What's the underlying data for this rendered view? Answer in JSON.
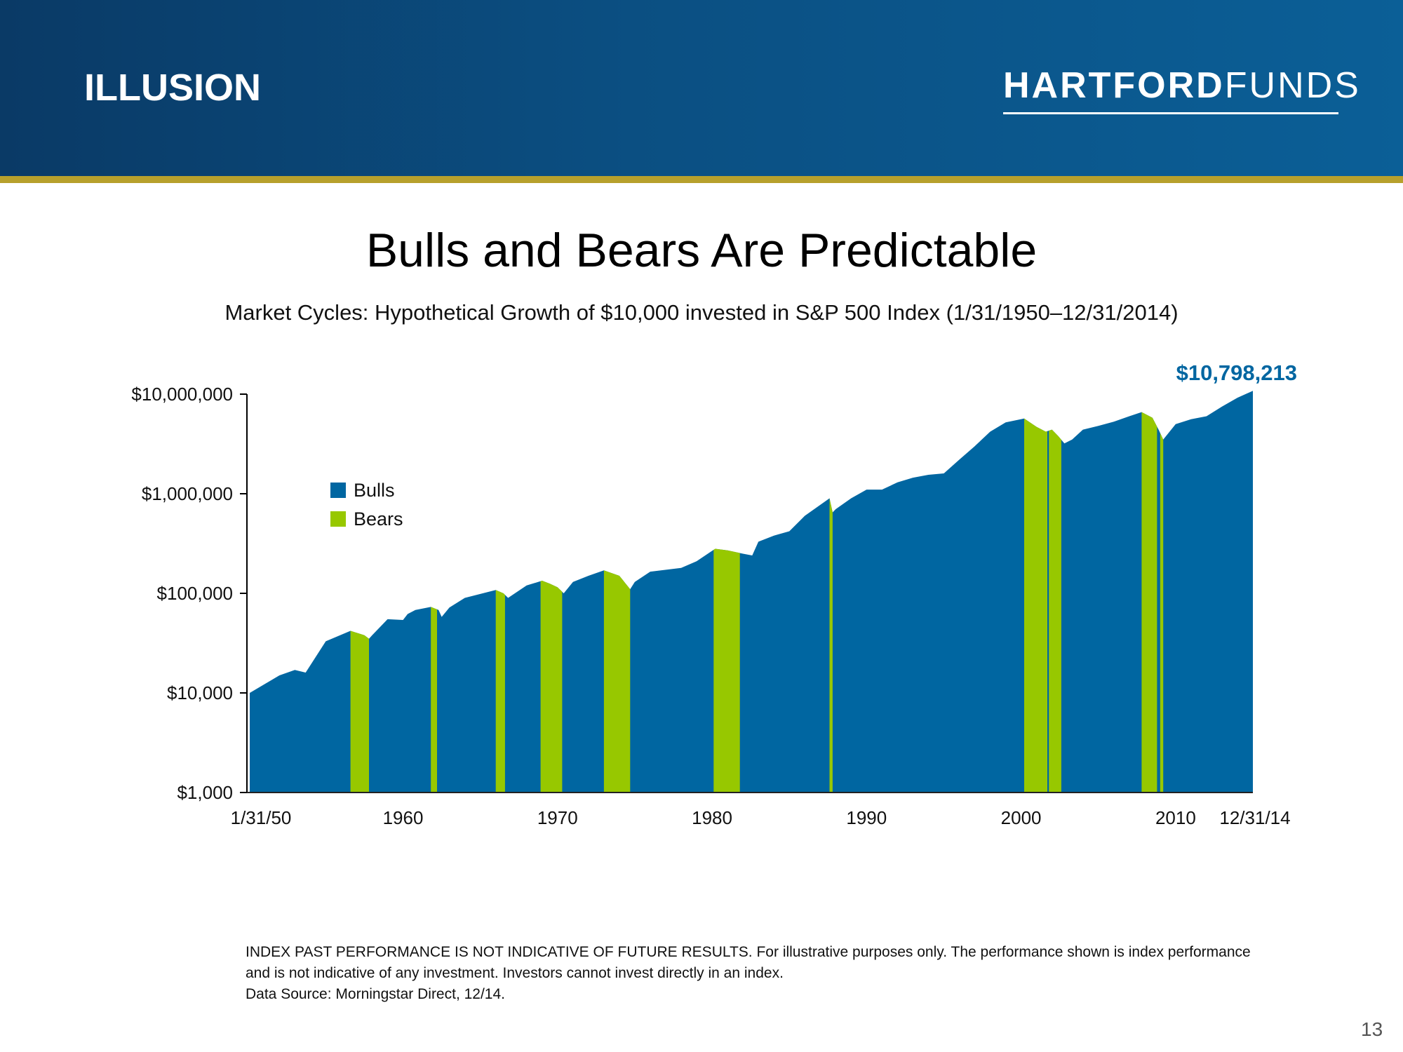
{
  "header": {
    "section_label": "ILLUSION",
    "logo_bold": "HARTFORD",
    "logo_light": "FUNDS"
  },
  "colors": {
    "header_start": "#0a3a66",
    "header_end": "#0b5f97",
    "header_rule": "#b7a02c",
    "bulls": "#0066a1",
    "bears": "#97c800",
    "final_value": "#0066a1"
  },
  "page_number": "13",
  "disclaimer": {
    "line1": "INDEX PAST PERFORMANCE IS NOT INDICATIVE OF FUTURE RESULTS. For illustrative purposes only. The performance shown is index performance",
    "line2": "and is not indicative of any investment. Investors cannot invest directly in an index.",
    "line3": "Data Source: Morningstar Direct, 12/14."
  },
  "chart_data": {
    "type": "area",
    "title": "Bulls and Bears Are Predictable",
    "subtitle": "Market Cycles: Hypothetical Growth of $10,000 invested in S&P 500 Index (1/31/1950–12/31/2014)",
    "y_scale": "log",
    "ylim": [
      1000,
      10000000
    ],
    "y_ticks": [
      {
        "value": 10000000,
        "label": "$10,000,000"
      },
      {
        "value": 1000000,
        "label": "$1,000,000"
      },
      {
        "value": 100000,
        "label": "$100,000"
      },
      {
        "value": 10000,
        "label": "$10,000"
      },
      {
        "value": 1000,
        "label": "$1,000"
      }
    ],
    "xlim": [
      1950.08,
      2015.0
    ],
    "x_ticks": [
      {
        "value": 1950.08,
        "label": "1/31/50"
      },
      {
        "value": 1960,
        "label": "1960"
      },
      {
        "value": 1970,
        "label": "1970"
      },
      {
        "value": 1980,
        "label": "1980"
      },
      {
        "value": 1990,
        "label": "1990"
      },
      {
        "value": 2000,
        "label": "2000"
      },
      {
        "value": 2010,
        "label": "2010"
      },
      {
        "value": 2015.0,
        "label": "12/31/14"
      }
    ],
    "grid": false,
    "legend_position": "upper-left",
    "legend": [
      {
        "name": "Bulls",
        "color": "#0066a1"
      },
      {
        "name": "Bears",
        "color": "#97c800"
      }
    ],
    "final_value_label": "$10,798,213",
    "series_points": [
      [
        1950.08,
        10000
      ],
      [
        1952,
        15000
      ],
      [
        1953,
        17000
      ],
      [
        1953.7,
        16000
      ],
      [
        1955,
        33000
      ],
      [
        1956.6,
        42000
      ],
      [
        1957.5,
        38000
      ],
      [
        1957.8,
        35000
      ],
      [
        1958,
        38000
      ],
      [
        1959,
        55000
      ],
      [
        1960,
        54000
      ],
      [
        1960.3,
        62000
      ],
      [
        1960.8,
        68000
      ],
      [
        1961.8,
        73000
      ],
      [
        1962.3,
        68000
      ],
      [
        1962.5,
        58000
      ],
      [
        1963,
        72000
      ],
      [
        1964,
        90000
      ],
      [
        1966,
        108000
      ],
      [
        1966.5,
        100000
      ],
      [
        1966.8,
        90000
      ],
      [
        1968,
        120000
      ],
      [
        1969,
        134000
      ],
      [
        1969.5,
        125000
      ],
      [
        1970,
        115000
      ],
      [
        1970.4,
        100000
      ],
      [
        1971,
        130000
      ],
      [
        1972,
        150000
      ],
      [
        1973,
        170000
      ],
      [
        1974,
        150000
      ],
      [
        1974.7,
        110000
      ],
      [
        1975,
        130000
      ],
      [
        1976,
        165000
      ],
      [
        1978,
        180000
      ],
      [
        1979,
        210000
      ],
      [
        1980.2,
        280000
      ],
      [
        1981,
        270000
      ],
      [
        1982,
        250000
      ],
      [
        1982.6,
        240000
      ],
      [
        1983,
        330000
      ],
      [
        1984,
        380000
      ],
      [
        1985,
        420000
      ],
      [
        1986,
        600000
      ],
      [
        1987.6,
        900000
      ],
      [
        1987.8,
        650000
      ],
      [
        1988,
        700000
      ],
      [
        1989,
        900000
      ],
      [
        1990,
        1100000
      ],
      [
        1991,
        1100000
      ],
      [
        1992,
        1300000
      ],
      [
        1993,
        1450000
      ],
      [
        1994,
        1550000
      ],
      [
        1995,
        1600000
      ],
      [
        1996,
        2200000
      ],
      [
        1997,
        3000000
      ],
      [
        1998,
        4200000
      ],
      [
        1999,
        5200000
      ],
      [
        2000.2,
        5700000
      ],
      [
        2001,
        4700000
      ],
      [
        2001.6,
        4200000
      ],
      [
        2002,
        4400000
      ],
      [
        2002.4,
        3800000
      ],
      [
        2002.8,
        3200000
      ],
      [
        2003.3,
        3500000
      ],
      [
        2004,
        4400000
      ],
      [
        2005,
        4800000
      ],
      [
        2006,
        5300000
      ],
      [
        2007,
        6000000
      ],
      [
        2007.8,
        6600000
      ],
      [
        2008.5,
        5800000
      ],
      [
        2008.9,
        4400000
      ],
      [
        2009.2,
        3500000
      ],
      [
        2010,
        5000000
      ],
      [
        2011,
        5600000
      ],
      [
        2012,
        6000000
      ],
      [
        2013,
        7500000
      ],
      [
        2014,
        9200000
      ],
      [
        2015.0,
        10798213
      ]
    ],
    "bear_periods": [
      [
        1956.6,
        1957.8
      ],
      [
        1961.8,
        1962.2
      ],
      [
        1966.0,
        1966.6
      ],
      [
        1968.9,
        1970.3
      ],
      [
        1973.0,
        1974.7
      ],
      [
        1980.1,
        1981.8
      ],
      [
        1987.6,
        1987.8
      ],
      [
        2000.2,
        2001.7
      ],
      [
        2001.8,
        2002.6
      ],
      [
        2007.8,
        2008.8
      ],
      [
        2009.0,
        2009.2
      ]
    ]
  }
}
